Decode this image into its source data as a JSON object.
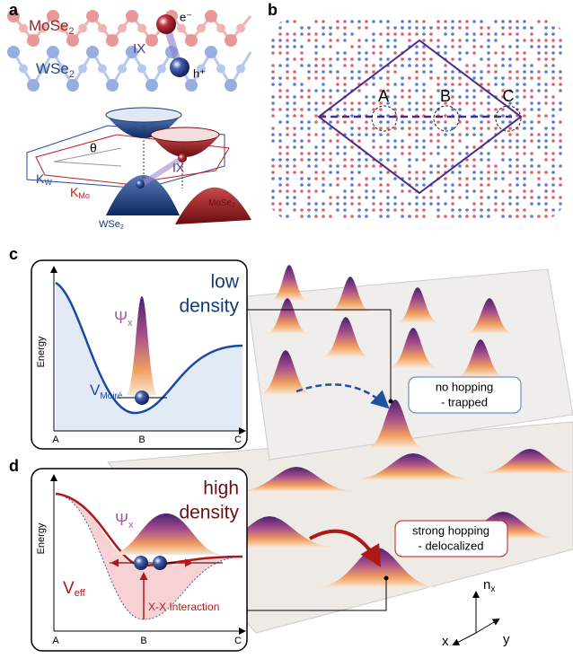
{
  "panels": {
    "a": {
      "label": "a",
      "top_layer": {
        "main": "MoSe",
        "sub": "2"
      },
      "bottom_layer": {
        "main": "WSe",
        "sub": "2"
      },
      "electron": "e⁻",
      "hole": "h⁺",
      "exciton": "IX",
      "angle": "θ",
      "valley_w": {
        "main": "K",
        "sub": "W"
      },
      "valley_mo": {
        "main": "K",
        "sub": "Mo"
      },
      "exciton_band": "IX",
      "band_w": {
        "main": "WSe",
        "sub": "2"
      },
      "band_mo": {
        "main": "MoSe",
        "sub": "2"
      }
    },
    "b": {
      "label": "b",
      "sites": [
        "A",
        "B",
        "C"
      ]
    },
    "c": {
      "label": "c",
      "title": [
        "low",
        "density"
      ],
      "wavefunction": {
        "main": "Ψ",
        "sub": "x"
      },
      "y_axis": "Energy",
      "potential": {
        "main": "V",
        "sub": "Moiré"
      },
      "x_ticks": [
        "A",
        "B",
        "C"
      ],
      "callout": [
        "no hopping",
        "- trapped"
      ]
    },
    "d": {
      "label": "d",
      "title": [
        "high",
        "density"
      ],
      "wavefunction": {
        "main": "Ψ",
        "sub": "x"
      },
      "y_axis": "Energy",
      "potential": {
        "main": "V",
        "sub": "eff"
      },
      "interaction": "X-X Interaction",
      "x_ticks": [
        "A",
        "B",
        "C"
      ],
      "callout": [
        "strong hopping",
        "- delocalized"
      ],
      "axes": {
        "z": {
          "main": "n",
          "sub": "x"
        },
        "x": "x",
        "y": "y"
      }
    }
  }
}
